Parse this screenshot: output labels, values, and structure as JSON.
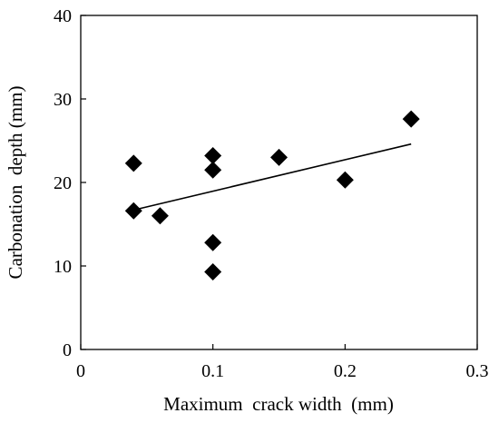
{
  "chart_data": {
    "type": "scatter",
    "title": "",
    "xlabel": "Maximum  crack width  (mm)",
    "ylabel": "Carbonation  depth (mm)",
    "xlim": [
      0,
      0.3
    ],
    "ylim": [
      0,
      40
    ],
    "x_ticks": [
      0,
      0.1,
      0.2,
      0.3
    ],
    "x_tick_labels": [
      "0",
      "0.1",
      "0.2",
      "0.3"
    ],
    "y_ticks": [
      0,
      10,
      20,
      30,
      40
    ],
    "y_tick_labels": [
      "0",
      "10",
      "20",
      "30",
      "40"
    ],
    "grid": false,
    "legend": "none",
    "marker": "diamond",
    "marker_color": "#000000",
    "points": [
      {
        "x": 0.04,
        "y": 22.3
      },
      {
        "x": 0.04,
        "y": 16.6
      },
      {
        "x": 0.06,
        "y": 16.0
      },
      {
        "x": 0.1,
        "y": 23.2
      },
      {
        "x": 0.1,
        "y": 21.5
      },
      {
        "x": 0.1,
        "y": 12.8
      },
      {
        "x": 0.1,
        "y": 9.3
      },
      {
        "x": 0.15,
        "y": 23.0
      },
      {
        "x": 0.2,
        "y": 20.3
      },
      {
        "x": 0.25,
        "y": 27.6
      }
    ],
    "trendline": {
      "type": "linear",
      "x_start": 0.04,
      "y_start": 16.7,
      "x_end": 0.25,
      "y_end": 24.6
    }
  }
}
